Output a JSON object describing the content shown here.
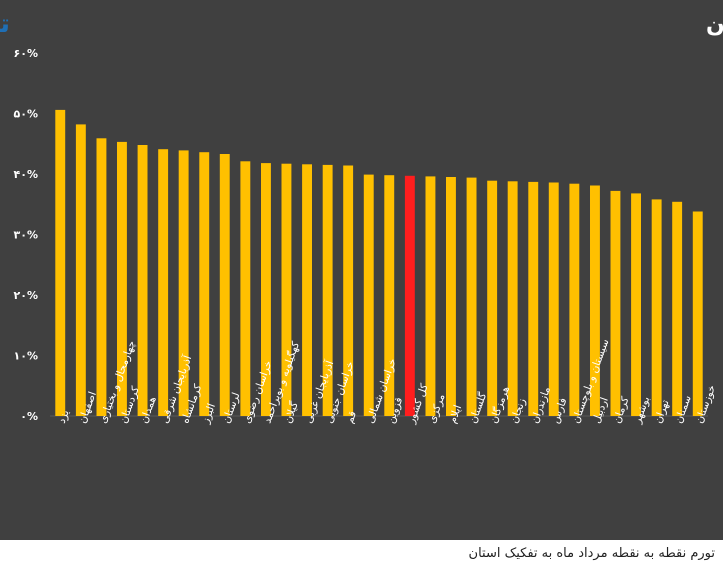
{
  "caption": "تورم نقطه به نقطه مرداد ماه به تفکیک استان",
  "brand": {
    "part1": "تجارت",
    "part2": "نیوز",
    "color1": "#1f6fb5",
    "color2": "#e53935"
  },
  "colors": {
    "panel_bg": "#404040",
    "bar": "#ffc000",
    "highlight_bar": "#ff1e1e",
    "text": "#ffffff",
    "grid": "#5a5a5a"
  },
  "chart_data": {
    "type": "bar",
    "title": "تورم نقطه به نقطه مرداد ماه به تفکیک استان",
    "ylim": [
      0,
      60
    ],
    "yticks": [
      "۶۰%",
      "۵۰%",
      "۴۰%",
      "۳۰%",
      "۲۰%",
      "۱۰%",
      "۰%"
    ],
    "ytick_values": [
      60,
      50,
      40,
      30,
      20,
      10,
      0
    ],
    "categories": [
      "یزد",
      "اصفهان",
      "چهارمحال و بختیاری",
      "کردستان",
      "همدان",
      "آذربایجان شرقی",
      "کرمانشاه",
      "البرز",
      "لرستان",
      "خراسان رضوی",
      "کهگیلویه و بویراحمد",
      "گیلان",
      "آذربایجان غربی",
      "خراسان جنوبی",
      "قم",
      "خراسان شمالی",
      "قزوین",
      "کل کشور",
      "مرکزی",
      "ایلام",
      "گلستان",
      "هرمزگان",
      "زنجان",
      "مازندران",
      "فارس",
      "سیستان و بلوچستان",
      "اردبیل",
      "کرمان",
      "بوشهر",
      "تهران",
      "سمنان",
      "خوزستان"
    ],
    "values": [
      50.6,
      48.2,
      45.9,
      45.3,
      44.8,
      44.1,
      43.9,
      43.6,
      43.3,
      42.1,
      41.8,
      41.7,
      41.6,
      41.5,
      41.4,
      39.9,
      39.8,
      39.7,
      39.6,
      39.5,
      39.4,
      38.9,
      38.8,
      38.7,
      38.6,
      38.4,
      38.1,
      37.2,
      36.8,
      35.8,
      35.4,
      33.8
    ],
    "highlight_category": "کل کشور",
    "grid": false,
    "legend": "none"
  }
}
